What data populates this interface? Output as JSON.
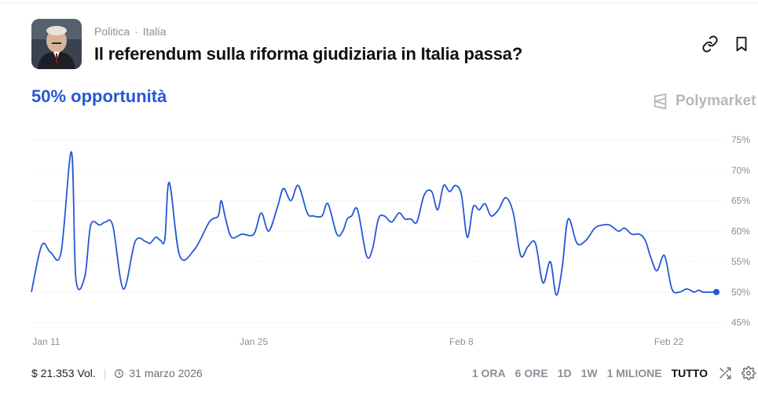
{
  "market": {
    "category": "Politica",
    "subcategory": "Italia",
    "title": "Il referendum sulla riforma giudiziaria in Italia passa?",
    "chance_text": "50% opportunità",
    "brand": "Polymarket"
  },
  "icons": [
    "link-icon",
    "bookmark-icon",
    "polymarket-logo-icon",
    "clock-icon",
    "shuffle-icon",
    "gear-icon"
  ],
  "colors": {
    "accent": "#2557d6",
    "muted": "#8a8f98",
    "grid": "#e6e8eb"
  },
  "footer": {
    "volume": "$ 21.353 Vol.",
    "end_date": "31 marzo 2026",
    "ranges": [
      "1 ORA",
      "6 ORE",
      "1D",
      "1W",
      "1 MILIONE",
      "TUTTO"
    ],
    "active_range": "TUTTO"
  },
  "chart_data": {
    "type": "line",
    "title": "",
    "xlabel": "",
    "ylabel": "",
    "ylim": [
      43,
      77
    ],
    "yticks": [
      45,
      50,
      55,
      60,
      65,
      70,
      75
    ],
    "ytick_labels": [
      "45%",
      "50%",
      "55%",
      "60%",
      "65%",
      "70%",
      "75%"
    ],
    "xticks": [
      11,
      25,
      39,
      53
    ],
    "xtick_labels": [
      "Jan 11",
      "Jan 25",
      "Feb 8",
      "Feb 22"
    ],
    "grid": true,
    "series": [
      {
        "color": "#2557d6",
        "x": [
          10.0,
          10.7,
          11.3,
          12.0,
          12.7,
          13.0,
          13.6,
          14.0,
          14.6,
          15.0,
          15.5,
          16.2,
          17.0,
          17.7,
          18.0,
          18.4,
          18.7,
          19.0,
          19.3,
          20.0,
          21.0,
          22.0,
          22.6,
          22.8,
          23.1,
          23.5,
          24.2,
          25.0,
          25.5,
          26.0,
          26.6,
          27.0,
          27.5,
          28.0,
          28.6,
          29.0,
          29.6,
          30.0,
          30.6,
          31.0,
          31.3,
          31.6,
          32.0,
          32.6,
          33.0,
          33.4,
          33.8,
          34.3,
          34.8,
          35.2,
          35.6,
          36.0,
          36.5,
          37.0,
          37.4,
          37.8,
          38.2,
          38.6,
          39.0,
          39.4,
          39.8,
          40.2,
          40.6,
          41.0,
          41.5,
          42.0,
          42.5,
          43.0,
          43.5,
          44.0,
          44.5,
          45.0,
          45.4,
          45.8,
          46.2,
          46.8,
          47.4,
          48.0,
          48.5,
          49.0,
          49.6,
          50.0,
          50.5,
          51.0,
          51.4,
          51.8,
          52.2,
          52.7,
          53.2,
          53.7,
          54.2,
          54.7,
          55.0,
          55.3,
          55.8,
          56.2
        ],
        "values": [
          50,
          57.7,
          56.5,
          56.5,
          73.0,
          52.2,
          52.5,
          61.0,
          61.0,
          61.5,
          60.8,
          50.5,
          58.3,
          58.3,
          58.0,
          59.0,
          58.5,
          58.7,
          68.0,
          56.0,
          57.0,
          61.5,
          62.5,
          65.0,
          62.0,
          59.0,
          59.5,
          59.5,
          63.0,
          60.0,
          64.0,
          67.0,
          65.0,
          67.5,
          63.0,
          62.5,
          62.5,
          64.5,
          59.5,
          60.0,
          62.0,
          62.5,
          63.5,
          56.0,
          57.0,
          62.0,
          62.5,
          61.5,
          63.0,
          62.0,
          62.0,
          61.5,
          66.0,
          66.5,
          63.5,
          67.5,
          66.5,
          67.5,
          66.0,
          59.0,
          64.0,
          63.5,
          64.5,
          62.5,
          63.5,
          65.5,
          63.0,
          56.0,
          57.5,
          58.0,
          51.5,
          55.0,
          49.5,
          54.0,
          62.0,
          58.0,
          58.5,
          60.5,
          61.0,
          61.0,
          60.0,
          60.5,
          59.5,
          59.5,
          58.5,
          55.5,
          53.5,
          56.0,
          50.5,
          50.0,
          50.5,
          50.0,
          50.3,
          50.0,
          50.0,
          50.0
        ]
      }
    ]
  }
}
